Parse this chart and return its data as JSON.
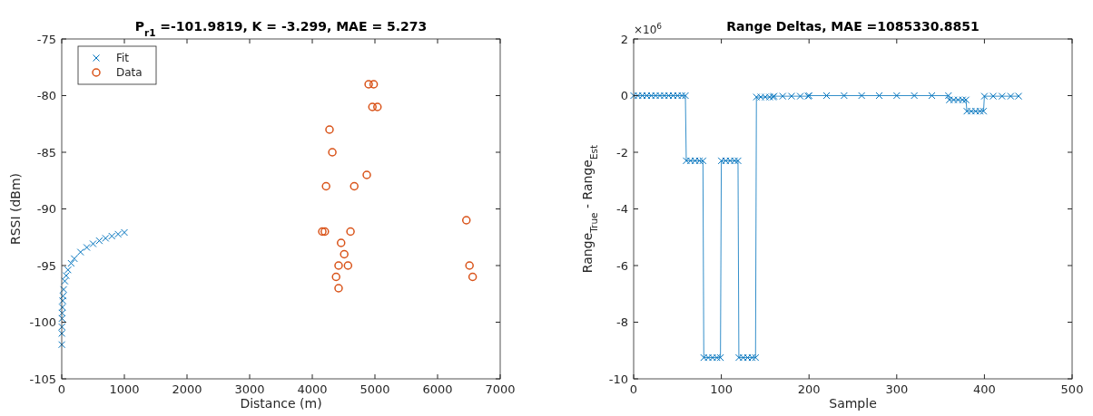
{
  "chart_data": [
    {
      "type": "scatter",
      "title": "P$_{r1}$ =-101.9819, K = -3.299, MAE = 5.273",
      "xlabel": "Distance (m)",
      "ylabel": "RSSI (dBm)",
      "xlim": [
        0,
        7000
      ],
      "ylim": [
        -105,
        -75
      ],
      "xticks": [
        0,
        1000,
        2000,
        3000,
        4000,
        5000,
        6000,
        7000
      ],
      "yticks": [
        -105,
        -100,
        -95,
        -90,
        -85,
        -80,
        -75
      ],
      "legend": "top left",
      "series": [
        {
          "name": "Fit",
          "color": "#0072bd",
          "marker": "cross",
          "x": [
            1,
            2,
            3,
            5,
            7,
            10,
            15,
            20,
            30,
            50,
            70,
            100,
            150,
            200,
            300,
            400,
            500,
            600,
            700,
            800,
            900,
            1000
          ],
          "values": [
            -101.98,
            -100.99,
            -100.41,
            -99.67,
            -99.19,
            -98.68,
            -98.1,
            -97.69,
            -97.11,
            -96.37,
            -95.89,
            -95.38,
            -94.8,
            -94.39,
            -93.81,
            -93.4,
            -93.08,
            -92.81,
            -92.59,
            -92.4,
            -92.23,
            -92.08
          ]
        },
        {
          "name": "Data",
          "color": "#d95319",
          "marker": "circle",
          "x": [
            4900,
            4980,
            4960,
            5040,
            4275,
            4320,
            4220,
            4870,
            4670,
            4160,
            4200,
            4610,
            6460,
            4460,
            4510,
            4420,
            4570,
            6510,
            4380,
            6560,
            4420
          ],
          "values": [
            -79,
            -79,
            -81,
            -81,
            -83,
            -85,
            -88,
            -87,
            -88,
            -92,
            -92,
            -92,
            -91,
            -93,
            -94,
            -95,
            -95,
            -95,
            -96,
            -96,
            -97
          ]
        }
      ]
    },
    {
      "type": "line",
      "title": "Range Deltas, MAE =1085330.8851",
      "xlabel": "Sample",
      "ylabel": "Range$_{True}$ - Range$_{Est}$",
      "xlim": [
        0,
        500
      ],
      "ylim": [
        -10,
        2
      ],
      "xticks": [
        0,
        100,
        200,
        300,
        400,
        500
      ],
      "yticks": [
        -10,
        -8,
        -6,
        -4,
        -2,
        0,
        2
      ],
      "annotations": [
        "×10$^{6}$"
      ],
      "marker": "cross",
      "line_style": "solid",
      "series": [
        {
          "color": "#0072bd",
          "x": [
            0,
            5,
            10,
            15,
            20,
            25,
            30,
            35,
            40,
            45,
            50,
            55,
            59,
            60,
            65,
            70,
            75,
            79,
            80,
            85,
            90,
            95,
            99,
            100,
            105,
            110,
            115,
            119,
            120,
            125,
            130,
            135,
            139,
            140,
            145,
            150,
            155,
            159,
            160,
            170,
            180,
            190,
            199,
            200,
            220,
            240,
            260,
            280,
            300,
            320,
            340,
            359,
            360,
            365,
            370,
            375,
            379,
            380,
            385,
            390,
            395,
            399,
            400,
            410,
            420,
            430,
            439
          ],
          "values": [
            0,
            0,
            0,
            0,
            0,
            0,
            0,
            0,
            0,
            0,
            0,
            0,
            0,
            -2.3,
            -2.3,
            -2.3,
            -2.3,
            -2.3,
            -9.25,
            -9.25,
            -9.25,
            -9.25,
            -9.25,
            -2.3,
            -2.3,
            -2.3,
            -2.3,
            -2.3,
            -9.25,
            -9.25,
            -9.25,
            -9.25,
            -9.25,
            -0.05,
            -0.05,
            -0.05,
            -0.05,
            -0.05,
            -0.02,
            -0.02,
            -0.02,
            -0.02,
            -0.02,
            0,
            0,
            0,
            0,
            0,
            0,
            0,
            0,
            0,
            -0.15,
            -0.15,
            -0.15,
            -0.15,
            -0.15,
            -0.55,
            -0.55,
            -0.55,
            -0.55,
            -0.55,
            -0.02,
            -0.02,
            -0.02,
            -0.02,
            -0.02
          ]
        }
      ]
    }
  ]
}
